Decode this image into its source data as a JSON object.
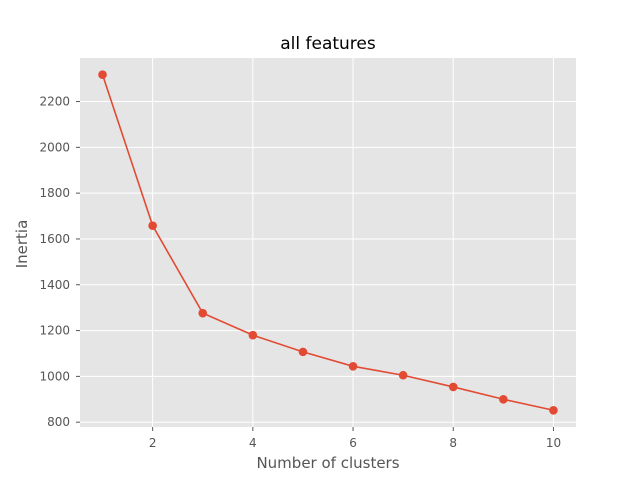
{
  "chart_data": {
    "type": "line",
    "title": "all features",
    "xlabel": "Number of clusters",
    "ylabel": "Inertia",
    "x": [
      1,
      2,
      3,
      4,
      5,
      6,
      7,
      8,
      9,
      10
    ],
    "series": [
      {
        "values": [
          2317,
          1658,
          1276,
          1180,
          1107,
          1044,
          1005,
          954,
          900,
          852
        ]
      }
    ],
    "xlim": [
      0.55,
      10.45
    ],
    "ylim": [
      779,
      2390
    ],
    "xticks": [
      2,
      4,
      6,
      8,
      10
    ],
    "yticks": [
      800,
      1000,
      1200,
      1400,
      1600,
      1800,
      2000,
      2200
    ],
    "grid": true,
    "style": "ggplot",
    "colors": {
      "line": "#e24a33",
      "plot_background": "#e5e5e5",
      "grid": "#ffffff",
      "text": "#555555",
      "title": "#000000"
    }
  }
}
